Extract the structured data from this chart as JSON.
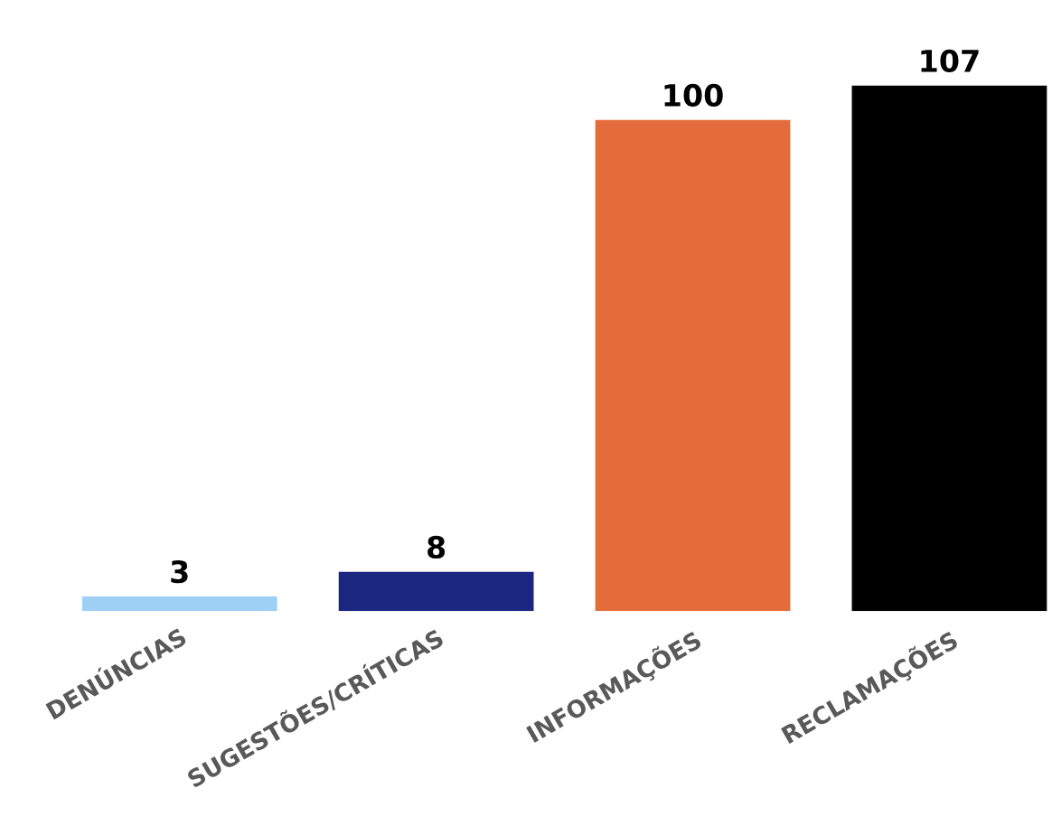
{
  "chart_data": {
    "type": "bar",
    "categories": [
      "DENÚNCIAS",
      "SUGESTÕES/CRÍTICAS",
      "INFORMAÇÕES",
      "RECLAMAÇÕES"
    ],
    "values": [
      3,
      8,
      100,
      107
    ],
    "colors": [
      "#9ecff5",
      "#1b2680",
      "#e46c3a",
      "#000000"
    ],
    "data_labels": true,
    "grid": false,
    "legend": false
  }
}
